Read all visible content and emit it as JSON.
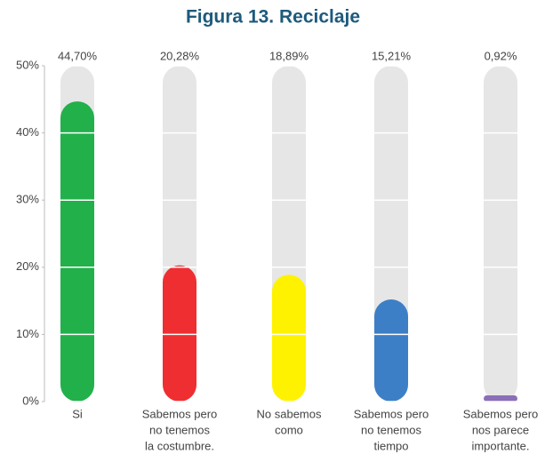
{
  "chart_data": {
    "type": "bar",
    "title": "Figura 13. Reciclaje",
    "categories": [
      [
        "Si"
      ],
      [
        "Sabemos pero",
        "no tenemos",
        "la costumbre."
      ],
      [
        "No sabemos",
        "como"
      ],
      [
        "Sabemos pero",
        "no tenemos",
        "tiempo"
      ],
      [
        "Sabemos pero",
        "nos parece",
        "importante."
      ]
    ],
    "values": [
      44.7,
      20.28,
      18.89,
      15.21,
      0.92
    ],
    "value_labels": [
      "44,70%",
      "20,28%",
      "18,89%",
      "15,21%",
      "0,92%"
    ],
    "colors": [
      "#22b04b",
      "#ee2e31",
      "#fff200",
      "#3d7fc6",
      "#8b6fb8"
    ],
    "ylim": [
      0,
      50
    ],
    "yticks": [
      {
        "value": 0,
        "label": "0%"
      },
      {
        "value": 10,
        "label": "10%"
      },
      {
        "value": 20,
        "label": "20%"
      },
      {
        "value": 30,
        "label": "30%"
      },
      {
        "value": 40,
        "label": "40%"
      },
      {
        "value": 50,
        "label": "50%"
      }
    ],
    "grid": true
  }
}
